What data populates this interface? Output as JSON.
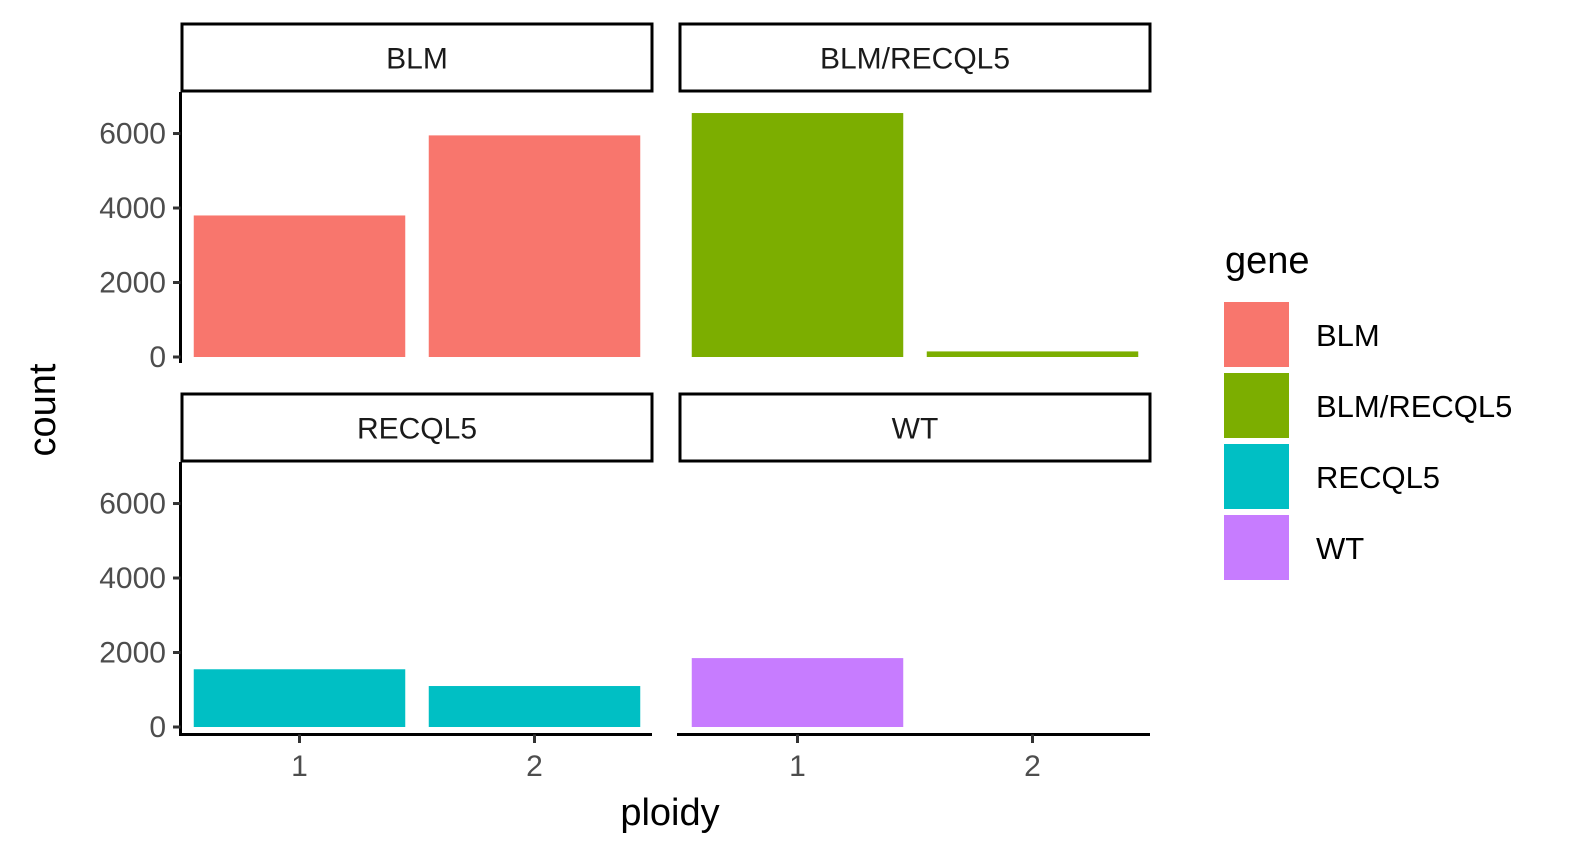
{
  "chart_data": {
    "type": "bar",
    "facets": [
      "BLM",
      "BLM/RECQL5",
      "RECQL5",
      "WT"
    ],
    "x": [
      "1",
      "2"
    ],
    "series": [
      {
        "name": "BLM",
        "facet": "BLM",
        "values": [
          3800,
          5950
        ]
      },
      {
        "name": "BLM/RECQL5",
        "facet": "BLM/RECQL5",
        "values": [
          6550,
          150
        ]
      },
      {
        "name": "RECQL5",
        "facet": "RECQL5",
        "values": [
          1550,
          1100
        ]
      },
      {
        "name": "WT",
        "facet": "WT",
        "values": [
          1850,
          0
        ]
      }
    ],
    "xlabel": "ploidy",
    "ylabel": "count",
    "yticks": [
      0,
      2000,
      4000,
      6000
    ],
    "ylim": [
      0,
      6900
    ],
    "legend": {
      "title": "gene",
      "position": "right",
      "items": [
        {
          "label": "BLM",
          "color": "#F8766D"
        },
        {
          "label": "BLM/RECQL5",
          "color": "#7CAE00"
        },
        {
          "label": "RECQL5",
          "color": "#00BFC4"
        },
        {
          "label": "WT",
          "color": "#C77CFF"
        }
      ]
    },
    "grid": false
  }
}
